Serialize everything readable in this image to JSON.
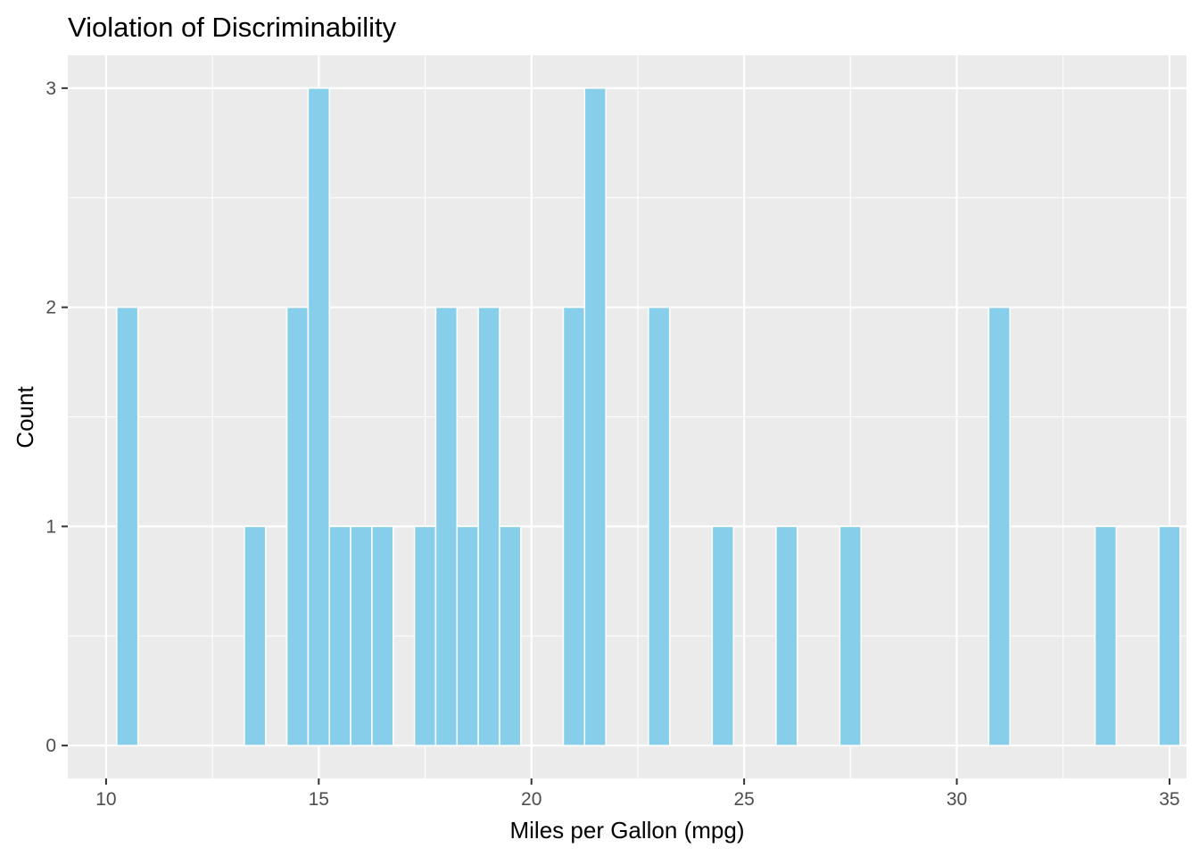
{
  "chart_data": {
    "type": "bar",
    "title": "Violation of Discriminability",
    "xlabel": "Miles per Gallon (mpg)",
    "ylabel": "Count",
    "xlim": [
      9.1,
      35.4
    ],
    "ylim": [
      -0.15,
      3.15
    ],
    "x_ticks": [
      10,
      15,
      20,
      25,
      30,
      35
    ],
    "y_ticks": [
      0,
      1,
      2,
      3
    ],
    "grid": true,
    "bin_width": 0.5,
    "bin_start": 10.25,
    "counts": [
      2,
      0,
      0,
      0,
      0,
      0,
      1,
      0,
      2,
      3,
      1,
      1,
      1,
      0,
      1,
      2,
      1,
      2,
      1,
      0,
      0,
      2,
      3,
      0,
      0,
      2,
      0,
      0,
      1,
      0,
      0,
      1,
      0,
      0,
      1,
      0,
      0,
      0,
      0,
      0,
      0,
      2,
      0,
      0,
      0,
      0,
      1,
      0,
      0,
      1
    ],
    "colors": {
      "fill": "#87CEEB",
      "panel": "#EBEBEB",
      "grid": "#FFFFFF",
      "bar_outline": "#FFFFFF"
    }
  }
}
